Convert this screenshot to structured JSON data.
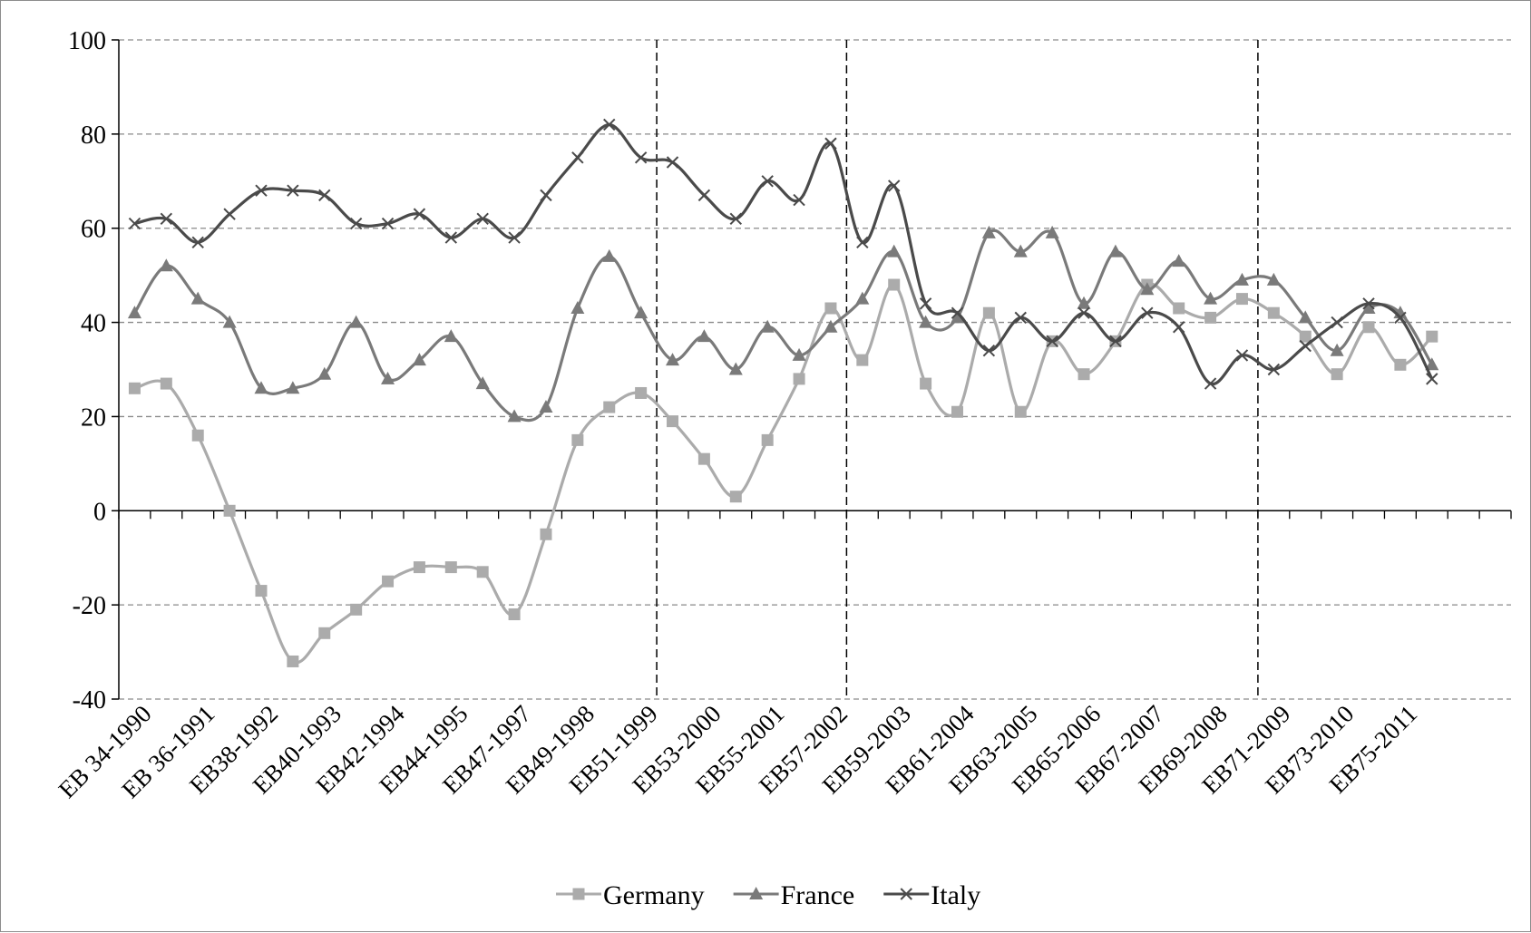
{
  "chart_data": {
    "type": "line",
    "title": "",
    "xlabel": "",
    "ylabel": "",
    "ylim": [
      -40,
      100
    ],
    "yticks": [
      "100",
      "80",
      "60",
      "40",
      "20",
      "0",
      "-20",
      "-40"
    ],
    "grid": "horizontal-dashed",
    "legend_position": "bottom",
    "x_tick_labels": [
      "EB 34-1990",
      "EB 36-1991",
      "EB38-1992",
      "EB40-1993",
      "EB42-1994",
      "EB44-1995",
      "EB47-1997",
      "EB49-1998",
      "EB51-1999",
      "EB53-2000",
      "EB55-2001",
      "EB57-2002",
      "EB59-2003",
      "EB61-2004",
      "EB63-2005",
      "EB65-2006",
      "EB67-2007",
      "EB69-2008",
      "EB71-2009",
      "EB73-2010",
      "EB75-2011"
    ],
    "point_count": 44,
    "vertical_markers_after_point_index": [
      16.5,
      22.5,
      35.5
    ],
    "series": [
      {
        "name": "Germany",
        "color": "#ababab",
        "marker": "square",
        "values": [
          26,
          27,
          16,
          0,
          -17,
          -32,
          -26,
          -21,
          -15,
          -12,
          -12,
          -13,
          -22,
          -5,
          15,
          22,
          25,
          19,
          11,
          3,
          15,
          28,
          43,
          32,
          48,
          27,
          21,
          42,
          21,
          36,
          29,
          36,
          48,
          43,
          41,
          45,
          42,
          37,
          29,
          39,
          31,
          37,
          null,
          null
        ]
      },
      {
        "name": "France",
        "color": "#7a7a7a",
        "marker": "triangle",
        "values": [
          42,
          52,
          45,
          40,
          26,
          26,
          29,
          40,
          28,
          32,
          37,
          27,
          20,
          22,
          43,
          54,
          42,
          32,
          37,
          30,
          39,
          33,
          39,
          45,
          55,
          40,
          41,
          59,
          55,
          59,
          44,
          55,
          47,
          53,
          45,
          49,
          49,
          41,
          34,
          43,
          42,
          31,
          null,
          null
        ]
      },
      {
        "name": "Italy",
        "color": "#4a4a4a",
        "marker": "x",
        "values": [
          61,
          62,
          57,
          63,
          68,
          68,
          67,
          61,
          61,
          63,
          58,
          62,
          58,
          67,
          75,
          82,
          75,
          74,
          67,
          62,
          70,
          66,
          78,
          57,
          69,
          44,
          42,
          34,
          41,
          36,
          42,
          36,
          42,
          39,
          27,
          33,
          30,
          35,
          40,
          44,
          41,
          28,
          null,
          null
        ]
      }
    ]
  }
}
